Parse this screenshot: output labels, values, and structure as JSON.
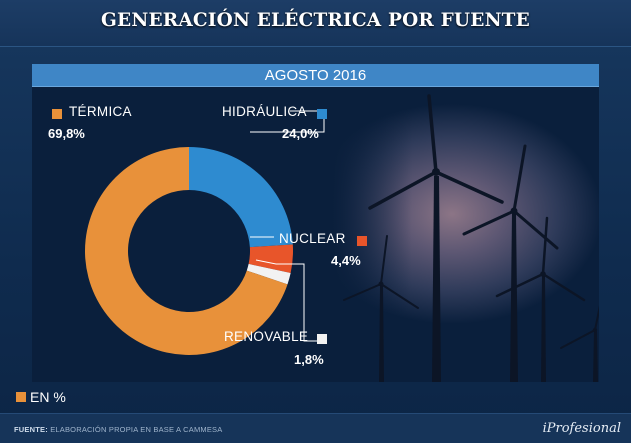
{
  "title": "GENERACIÓN ELÉCTRICA POR FUENTE",
  "unit_note": "EN %",
  "footer": {
    "source_label": "FUENTE:",
    "source_text": "ELABORACIÓN PROPIA EN BASE A CAMMESA",
    "brand": "iProfesional"
  },
  "chart_data": {
    "type": "pie",
    "subtitle": "AGOSTO 2016",
    "slices": [
      {
        "label": "TÉRMICA",
        "value": 69.8,
        "display": "69,8%",
        "color": "#e8913a"
      },
      {
        "label": "HIDRÁULICA",
        "value": 24.0,
        "display": "24,0%",
        "color": "#2e8bd0"
      },
      {
        "label": "NUCLEAR",
        "value": 4.4,
        "display": "4,4%",
        "color": "#e8552a"
      },
      {
        "label": "RENOVABLE",
        "value": 1.8,
        "display": "1,8%",
        "color": "#f2f2f2"
      }
    ],
    "donut": true,
    "legend": "labels-around-chart"
  }
}
